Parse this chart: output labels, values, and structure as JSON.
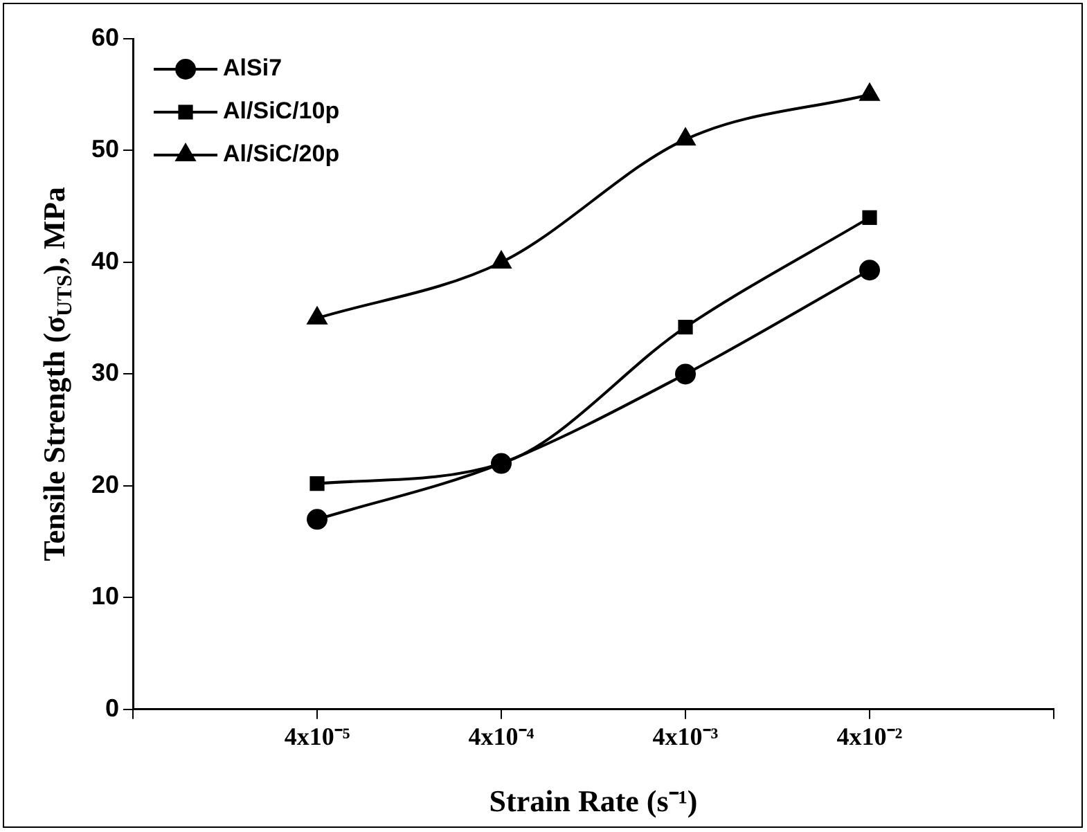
{
  "chart_data": {
    "type": "line",
    "xlabel": "Strain Rate (s⁻¹)",
    "ylabel": "Tensile Strength (σ$_{UTS}$), MPa",
    "categories": [
      "4x10⁻⁵",
      "4x10⁻⁴",
      "4x10⁻³",
      "4x10⁻²"
    ],
    "ylim": [
      0,
      60
    ],
    "yticks": [
      0,
      10,
      20,
      30,
      40,
      50,
      60
    ],
    "grid": false,
    "legend": "top left",
    "line_style": "solid",
    "series": [
      {
        "name": "AlSi7",
        "color": "#000000",
        "marker": "circle",
        "values": [
          17,
          22,
          30,
          39.3
        ]
      },
      {
        "name": "Al/SiC/10p",
        "color": "#000000",
        "marker": "square",
        "values": [
          20.2,
          22,
          34.2,
          44
        ]
      },
      {
        "name": "Al/SiC/20p",
        "color": "#000000",
        "marker": "triangle",
        "values": [
          35,
          40,
          51,
          55
        ]
      }
    ]
  }
}
